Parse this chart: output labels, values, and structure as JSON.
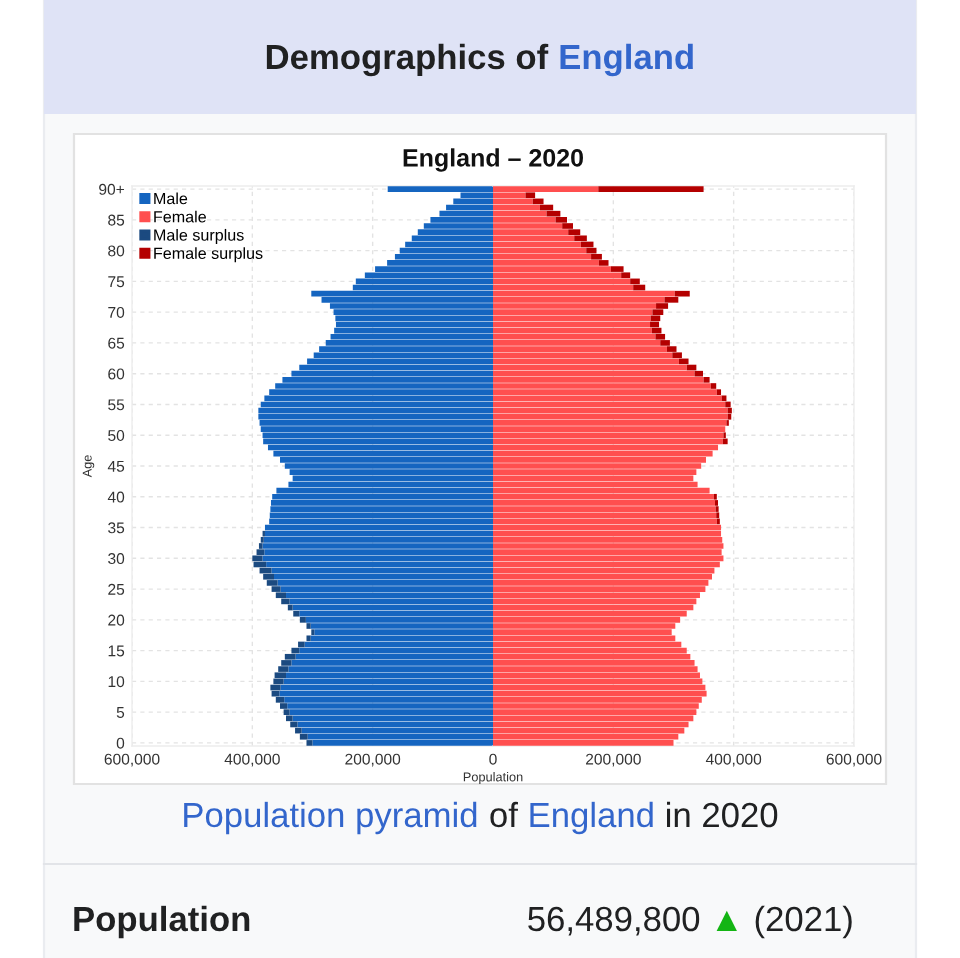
{
  "chart_data": [
    {
      "type": "bar",
      "orientation": "horizontal",
      "stacked": true,
      "title": "England – 2020",
      "xlabel": "Population",
      "ylabel": "Age",
      "categories": [
        "90+",
        null,
        null,
        null,
        null,
        "85",
        null,
        null,
        null,
        null,
        "80",
        null,
        null,
        null,
        null,
        "75",
        null,
        null,
        null,
        null,
        "70",
        null,
        null,
        null,
        null,
        "65",
        null,
        null,
        null,
        null,
        "60",
        null,
        null,
        null,
        null,
        "55",
        null,
        null,
        null,
        null,
        "50",
        null,
        null,
        null,
        null,
        "45",
        null,
        null,
        null,
        null,
        "40",
        null,
        null,
        null,
        null,
        "35",
        null,
        null,
        null,
        null,
        "30",
        null,
        null,
        null,
        null,
        "25",
        null,
        null,
        null,
        null,
        "20",
        null,
        null,
        null,
        null,
        "15",
        null,
        null,
        null,
        null,
        "10",
        null,
        null,
        null,
        null,
        "5",
        null,
        null,
        null,
        null,
        "0"
      ],
      "series": [
        {
          "name": "Male",
          "color": "#1565c0",
          "values": [
            175000,
            54000,
            66000,
            78000,
            89000,
            104000,
            115000,
            125000,
            135000,
            146000,
            155000,
            163000,
            176000,
            196000,
            213000,
            228000,
            233000,
            302000,
            285000,
            271000,
            265000,
            262000,
            261000,
            264000,
            270000,
            278000,
            289000,
            298000,
            309000,
            322000,
            335000,
            350000,
            362000,
            372000,
            380000,
            386000,
            390000,
            390000,
            388000,
            386000,
            383000,
            382000,
            374000,
            365000,
            354000,
            346000,
            338000,
            333000,
            340000,
            360000,
            367000,
            369000,
            370000,
            371000,
            372000,
            379000,
            379000,
            381000,
            383000,
            380000,
            383000,
            377000,
            368000,
            364000,
            358000,
            353000,
            344000,
            338000,
            333000,
            322000,
            311000,
            303000,
            297000,
            303000,
            313000,
            322000,
            328000,
            335000,
            340000,
            344000,
            348000,
            353000,
            355000,
            347000,
            342000,
            338000,
            333000,
            325000,
            318000,
            308000,
            300000
          ]
        },
        {
          "name": "Male surplus",
          "color": "#1b4a80",
          "values": [
            null,
            null,
            null,
            null,
            null,
            null,
            null,
            null,
            null,
            null,
            null,
            null,
            null,
            null,
            null,
            null,
            null,
            null,
            null,
            null,
            null,
            null,
            null,
            null,
            null,
            null,
            null,
            null,
            null,
            null,
            null,
            null,
            null,
            null,
            null,
            null,
            null,
            null,
            null,
            null,
            null,
            null,
            null,
            null,
            null,
            null,
            null,
            null,
            null,
            null,
            null,
            null,
            null,
            null,
            null,
            null,
            4000,
            5000,
            6000,
            13000,
            17000,
            21000,
            20000,
            18000,
            18000,
            15000,
            17000,
            14000,
            8000,
            10000,
            10000,
            7000,
            5000,
            7000,
            11000,
            13000,
            18000,
            17000,
            17000,
            19000,
            17000,
            17000,
            13000,
            14000,
            12000,
            10000,
            11000,
            12000,
            11000,
            13000,
            10000
          ]
        }
      ],
      "xlim": [
        600000,
        0
      ],
      "xticks": [
        {
          "value": 600000,
          "label": "600,000"
        },
        {
          "value": 400000,
          "label": "400,000"
        },
        {
          "value": 200000,
          "label": "200,000"
        }
      ],
      "grid": true,
      "legend": "top left",
      "annotations": [
        "Demographics of",
        "England",
        "Population pyramid",
        "of",
        "England",
        "in 2020",
        "Population",
        "56,489,800",
        "▲",
        "(2021)"
      ]
    },
    {
      "type": "bar",
      "orientation": "horizontal",
      "stacked": true,
      "categories": [
        null,
        null,
        null,
        null,
        null,
        null,
        null,
        null,
        null,
        null,
        null,
        null,
        null,
        null,
        null,
        null,
        null,
        null,
        null,
        null,
        null,
        null,
        null,
        null,
        null,
        null,
        null,
        null,
        null,
        null,
        null,
        null,
        null,
        null,
        null,
        null,
        null,
        null,
        null,
        null,
        null,
        null,
        null,
        null,
        null,
        null,
        null,
        null,
        null,
        null,
        null,
        null,
        null,
        null,
        null,
        null,
        null,
        null,
        null,
        null,
        null,
        null,
        null,
        null,
        null,
        null,
        null,
        null,
        null,
        null,
        null,
        null,
        null,
        null,
        null,
        null,
        null,
        null,
        null,
        null,
        null,
        null,
        null,
        null,
        null,
        null,
        null,
        null,
        null,
        null,
        null
      ],
      "series": [
        {
          "name": "Female",
          "color": "#ff4f4f",
          "values": [
            175000,
            54000,
            66000,
            78000,
            89000,
            104000,
            115000,
            125000,
            135000,
            146000,
            155000,
            163000,
            176000,
            196000,
            213000,
            228000,
            233000,
            302000,
            285000,
            271000,
            265000,
            262000,
            261000,
            264000,
            270000,
            278000,
            289000,
            298000,
            309000,
            322000,
            335000,
            350000,
            362000,
            372000,
            380000,
            386000,
            390000,
            390000,
            388000,
            386000,
            383000,
            382000,
            374000,
            365000,
            354000,
            346000,
            338000,
            333000,
            340000,
            360000,
            367000,
            369000,
            370000,
            371000,
            372000,
            379000,
            379000,
            381000,
            383000,
            380000,
            383000,
            377000,
            368000,
            364000,
            358000,
            353000,
            344000,
            338000,
            333000,
            322000,
            311000,
            303000,
            297000,
            303000,
            313000,
            322000,
            328000,
            335000,
            340000,
            344000,
            348000,
            353000,
            355000,
            347000,
            342000,
            338000,
            333000,
            325000,
            318000,
            308000,
            300000
          ]
        },
        {
          "name": "Female surplus",
          "color": "#b40000",
          "values": [
            175000,
            16000,
            18000,
            22000,
            23000,
            19000,
            18000,
            20000,
            21000,
            21000,
            17000,
            18000,
            16000,
            21000,
            15000,
            16000,
            20000,
            25000,
            23000,
            20000,
            18000,
            16000,
            15000,
            16000,
            16000,
            16000,
            16000,
            16000,
            16000,
            16000,
            14000,
            10000,
            9000,
            7000,
            8000,
            9000,
            7000,
            6000,
            4000,
            null,
            4000,
            8000,
            null,
            null,
            null,
            null,
            null,
            null,
            null,
            null,
            5000,
            5000,
            5000,
            5000,
            5000,
            null,
            null,
            null,
            null,
            null,
            null,
            null,
            null,
            null,
            null,
            null,
            null,
            null,
            null,
            null,
            null,
            null,
            null,
            null,
            null,
            null,
            null,
            null,
            null,
            null,
            null,
            null,
            null,
            null,
            null,
            null,
            null,
            null,
            null,
            null,
            null
          ]
        }
      ],
      "xlim": [
        0,
        600000
      ],
      "xticks": [
        0,
        {
          "value": 200000,
          "label": "200,000"
        },
        {
          "value": 400000,
          "label": "400,000"
        },
        {
          "value": 600000,
          "label": "600,000"
        }
      ],
      "grid": true,
      "legend": "top left"
    }
  ]
}
